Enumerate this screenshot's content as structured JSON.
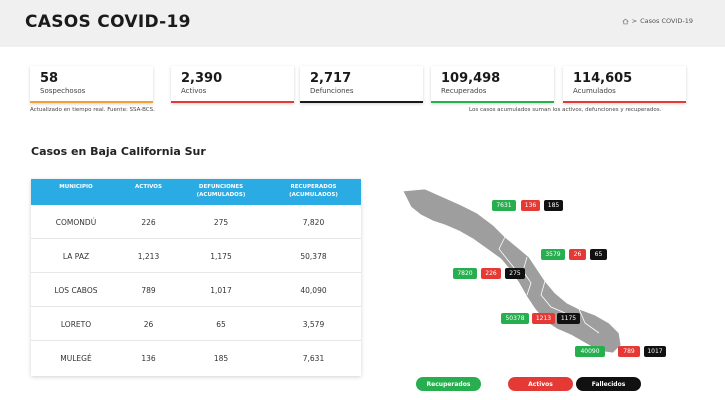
{
  "header": {
    "title": "CASOS COVID-19",
    "breadcrumb": "Casos COVID-19"
  },
  "stats": [
    {
      "value": "58",
      "label": "Sospechosos",
      "color": "#f0a23a"
    },
    {
      "value": "2,390",
      "label": "Activos",
      "color": "#e53935"
    },
    {
      "value": "2,717",
      "label": "Defunciones",
      "color": "#1a1a1a"
    },
    {
      "value": "109,498",
      "label": "Recuperados",
      "color": "#27ae4f"
    },
    {
      "value": "114,605",
      "label": "Acumulados",
      "color": "#e53935"
    }
  ],
  "notes": {
    "left": "Actualizado en tiempo real. Fuente: SSA-BCS.",
    "right": "Los casos acumulados suman los activos, defunciones y recuperados."
  },
  "section_title": "Casos en Baja California Sur",
  "table": {
    "headers": [
      "MUNICIPIO",
      "ACTIVOS",
      "DEFUNCIONES (ACUMULADOS)",
      "RECUPERADOS (ACUMULADOS)"
    ],
    "rows": [
      [
        "COMONDÚ",
        "226",
        "275",
        "7,820"
      ],
      [
        "LA PAZ",
        "1,213",
        "1,175",
        "50,378"
      ],
      [
        "LOS CABOS",
        "789",
        "1,017",
        "40,090"
      ],
      [
        "LORETO",
        "26",
        "65",
        "3,579"
      ],
      [
        "MULEGÉ",
        "136",
        "185",
        "7,631"
      ]
    ]
  },
  "map_badges": [
    {
      "recuperados": "7631",
      "activos": "136",
      "fallecidos": "185"
    },
    {
      "recuperados": "3579",
      "activos": "26",
      "fallecidos": "65"
    },
    {
      "recuperados": "7820",
      "activos": "226",
      "fallecidos": "275"
    },
    {
      "recuperados": "50378",
      "activos": "1213",
      "fallecidos": "1175"
    },
    {
      "recuperados": "40090",
      "activos": "789",
      "fallecidos": "1017"
    }
  ],
  "legend": {
    "recuperados": "Recuperados",
    "activos": "Activos",
    "fallecidos": "Fallecidos"
  },
  "colors": {
    "green": "#27ae4f",
    "red": "#e53935",
    "black": "#111111",
    "table_header": "#2aabe4",
    "map_fill": "#9e9e9e"
  }
}
